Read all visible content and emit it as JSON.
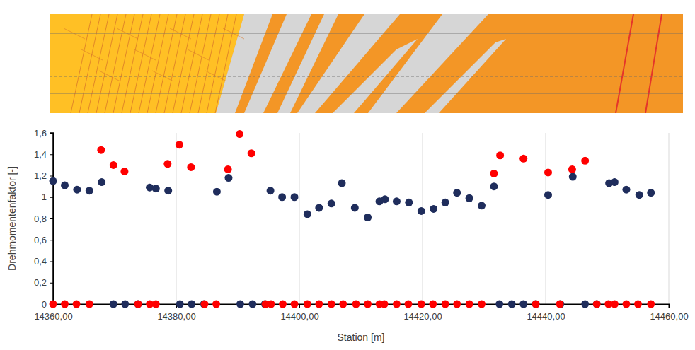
{
  "chart_data": {
    "type": "scatter",
    "x_label": "Station [m]",
    "y_label": "Drehmomentenfaktor  [-]",
    "xlim": [
      14360,
      14460
    ],
    "xticks": [
      {
        "value": 14360,
        "label": "14360,00"
      },
      {
        "value": 14380,
        "label": "14380,00"
      },
      {
        "value": 14400,
        "label": "14400,00"
      },
      {
        "value": 14420,
        "label": "14420,00"
      },
      {
        "value": 14440,
        "label": "14440,00"
      },
      {
        "value": 14460,
        "label": "14460,00"
      }
    ],
    "ylim": [
      0,
      1.6
    ],
    "yticks": [
      0,
      {
        "value": 0.2,
        "label": "0,2"
      },
      {
        "value": 0.4,
        "label": "0,4"
      },
      {
        "value": 0.6,
        "label": "0,6"
      },
      {
        "value": 0.8,
        "label": "0,8"
      },
      1,
      {
        "value": 1.2,
        "label": "1,2"
      },
      {
        "value": 1.4,
        "label": "1,4"
      },
      {
        "value": 1.6,
        "label": "1,6"
      }
    ],
    "grid": true,
    "marker": "circle",
    "series": [
      {
        "color": "#1f2d5c",
        "x": [
          14360.0,
          14361.9,
          14363.9,
          14365.9,
          14367.9,
          14369.8,
          14371.7,
          14373.8,
          14375.7,
          14376.7,
          14378.7,
          14380.6,
          14382.5,
          14384.5,
          14386.6,
          14388.5,
          14390.4,
          14392.4,
          14394.4,
          14395.3,
          14397.2,
          14399.2,
          14401.3,
          14403.2,
          14405.2,
          14406.9,
          14409.0,
          14411.1,
          14413.0,
          14413.9,
          14415.8,
          14417.8,
          14419.8,
          14421.8,
          14423.7,
          14425.6,
          14427.6,
          14429.6,
          14431.6,
          14432.5,
          14434.5,
          14436.4,
          14438.4,
          14440.4,
          14442.4,
          14444.4,
          14446.4,
          14448.3,
          14450.3,
          14451.2,
          14453.1,
          14455.2,
          14457.1
        ],
        "values": [
          1.15,
          1.11,
          1.07,
          1.06,
          1.14,
          0,
          0,
          0,
          1.09,
          1.08,
          1.06,
          0,
          0,
          0,
          1.05,
          1.18,
          0,
          0,
          0,
          1.06,
          1.0,
          1.0,
          0.84,
          0.9,
          0.94,
          1.13,
          0.9,
          0.81,
          0.96,
          0.98,
          0.96,
          0.95,
          0.87,
          0.89,
          0.95,
          1.04,
          0.99,
          0.92,
          1.1,
          0,
          0,
          0,
          0,
          1.02,
          0,
          1.19,
          0,
          0,
          1.13,
          1.14,
          1.07,
          1.02,
          1.04
        ]
      },
      {
        "color": "#ff0000",
        "x": [
          14360.0,
          14361.9,
          14363.8,
          14365.9,
          14367.8,
          14369.8,
          14371.6,
          14373.8,
          14375.7,
          14376.7,
          14378.6,
          14380.5,
          14382.4,
          14384.6,
          14386.5,
          14388.4,
          14390.3,
          14392.2,
          14394.5,
          14395.4,
          14397.3,
          14399.2,
          14401.3,
          14403.2,
          14405.2,
          14407.1,
          14409.2,
          14411.1,
          14413.0,
          14413.8,
          14415.8,
          14417.7,
          14419.8,
          14421.7,
          14423.7,
          14425.6,
          14427.6,
          14429.6,
          14431.6,
          14432.6,
          14436.4,
          14438.4,
          14440.4,
          14442.3,
          14444.3,
          14446.4,
          14448.3,
          14450.2,
          14451.2,
          14453.1,
          14455.0,
          14457.1
        ],
        "values": [
          0,
          0,
          0,
          0,
          1.44,
          1.3,
          1.24,
          0,
          0,
          0,
          1.31,
          1.49,
          1.28,
          0,
          0,
          1.26,
          1.59,
          1.41,
          0,
          0,
          0,
          0,
          0,
          0,
          0,
          0,
          0,
          0,
          0,
          0,
          0,
          0,
          0,
          0,
          0,
          0,
          0,
          0,
          1.22,
          1.39,
          1.36,
          0,
          1.23,
          0,
          1.26,
          1.34,
          0,
          0,
          0,
          0,
          0,
          0
        ]
      }
    ]
  }
}
